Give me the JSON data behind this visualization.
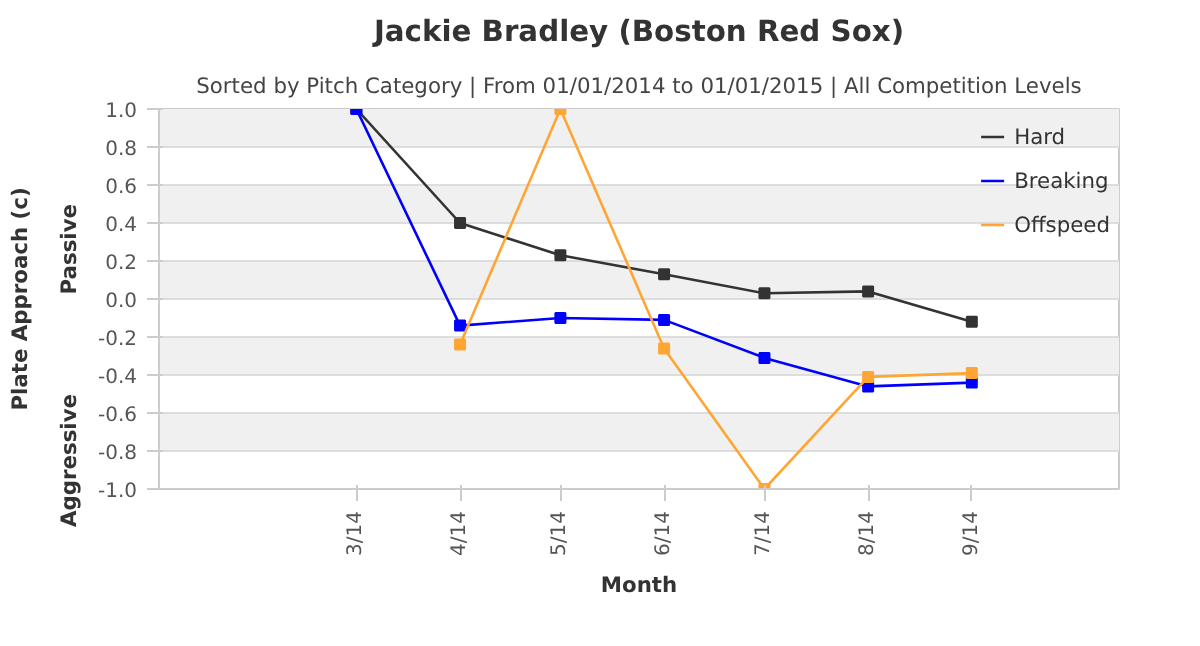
{
  "chart_data": {
    "type": "line",
    "title": "Jackie Bradley (Boston Red Sox)",
    "subtitle": "Sorted by Pitch Category | From 01/01/2014 to 01/01/2015 | All Competition Levels",
    "xlabel": "Month",
    "ylabel": "Plate Approach (c)",
    "annotations": [
      "Passive",
      "Aggressive"
    ],
    "x": [
      "2014-03",
      "2014-04",
      "2014-05",
      "2014-06",
      "2014-07",
      "2014-08",
      "2014-09"
    ],
    "xlim": [
      "2014-01",
      "2014-10-15"
    ],
    "xticks": [
      {
        "value": "2014-03",
        "label": "3/14"
      },
      {
        "value": "2014-04",
        "label": "4/14"
      },
      {
        "value": "2014-05",
        "label": "5/14"
      },
      {
        "value": "2014-06",
        "label": "6/14"
      },
      {
        "value": "2014-07",
        "label": "7/14"
      },
      {
        "value": "2014-08",
        "label": "8/14"
      },
      {
        "value": "2014-09",
        "label": "9/14"
      }
    ],
    "ylim": [
      -1.0,
      1.0
    ],
    "yticks": [
      {
        "value": -1.0,
        "label": "-1.0"
      },
      {
        "value": -0.8,
        "label": "-0.8"
      },
      {
        "value": -0.6,
        "label": "-0.6"
      },
      {
        "value": -0.4,
        "label": "-0.4"
      },
      {
        "value": -0.2,
        "label": "-0.2"
      },
      {
        "value": 0.0,
        "label": "0.0"
      },
      {
        "value": 0.2,
        "label": "0.2"
      },
      {
        "value": 0.4,
        "label": "0.4"
      },
      {
        "value": 0.6,
        "label": "0.6"
      },
      {
        "value": 0.8,
        "label": "0.8"
      },
      {
        "value": 1.0,
        "label": "1.0"
      }
    ],
    "series": [
      {
        "name": "Hard",
        "color": "#333333",
        "values": [
          1.0,
          0.4,
          0.23,
          0.13,
          0.03,
          0.04,
          -0.12
        ]
      },
      {
        "name": "Breaking",
        "color": "#0000ff",
        "values": [
          1.0,
          -0.14,
          -0.1,
          -0.11,
          -0.31,
          -0.46,
          -0.44
        ]
      },
      {
        "name": "Offspeed",
        "color": "#ffa533",
        "values": [
          null,
          -0.24,
          1.0,
          -0.26,
          -1.0,
          -0.41,
          -0.39
        ]
      }
    ],
    "grid": "y",
    "legend": "top right",
    "marker": "square",
    "line_style": "solid"
  }
}
